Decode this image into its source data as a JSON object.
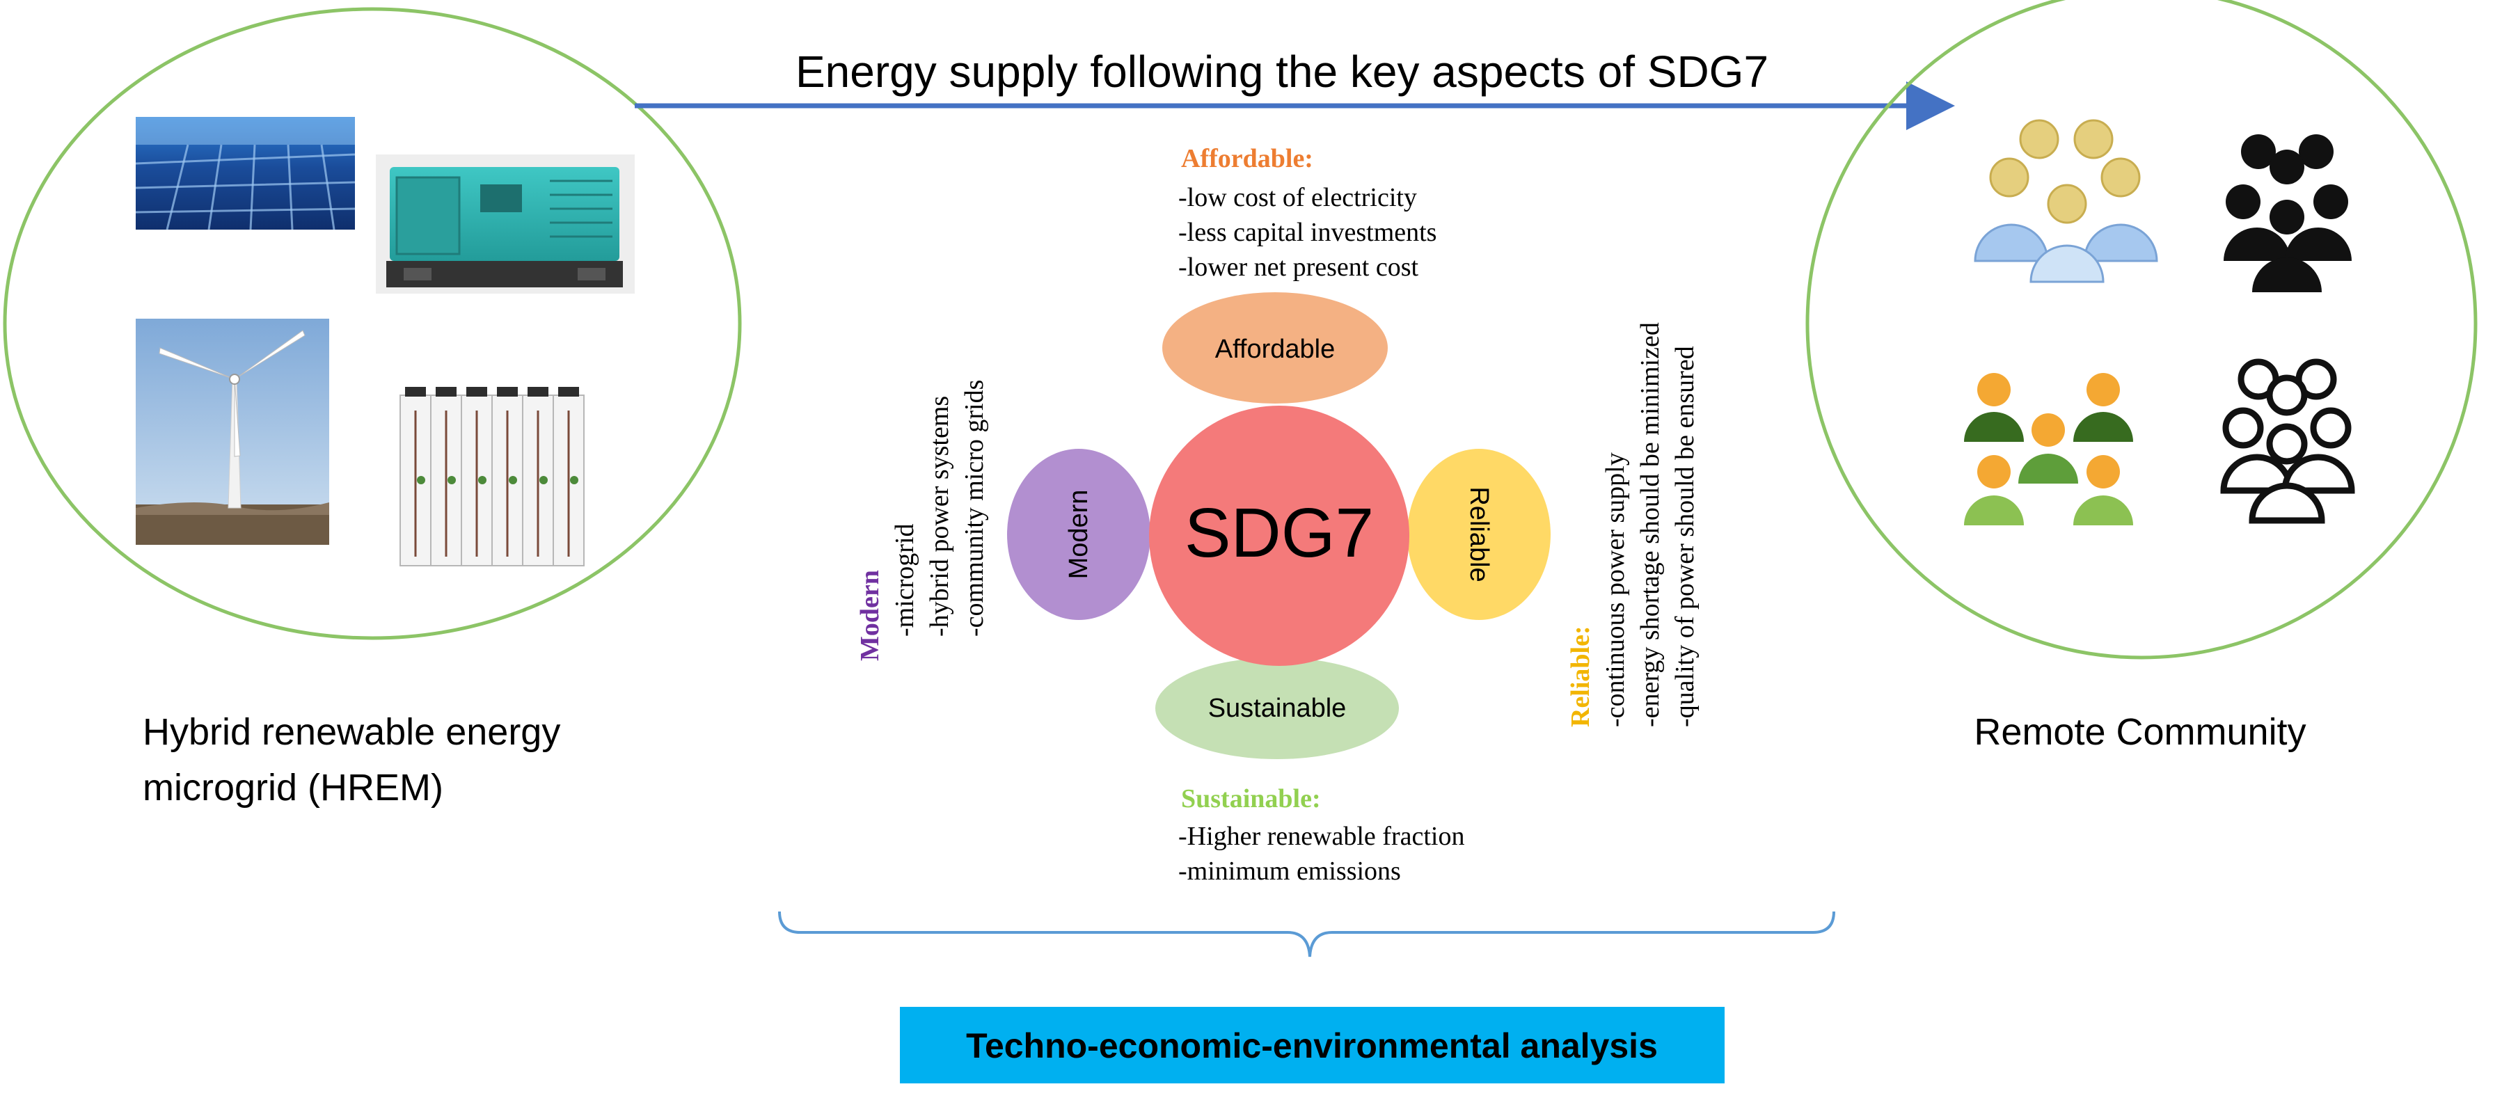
{
  "header": {
    "arrow_label": "Energy supply following the key aspects of SDG7"
  },
  "hrem": {
    "caption_line1": "Hybrid renewable energy",
    "caption_line2": "microgrid (HREM)"
  },
  "community": {
    "caption": "Remote Community"
  },
  "center": {
    "label": "SDG7"
  },
  "petals": {
    "affordable": "Affordable",
    "modern": "Modern",
    "reliable": "Reliable",
    "sustainable": "Sustainable"
  },
  "descriptions": {
    "affordable": {
      "title": "Affordable:",
      "items": [
        "-low cost of electricity",
        "-less capital investments",
        "-lower net present cost"
      ]
    },
    "modern": {
      "title": "Modern",
      "items": [
        "-microgrid",
        "-hybrid power systems",
        "-community micro grids"
      ]
    },
    "reliable": {
      "title": "Reliable:",
      "items": [
        "-continuous power supply",
        "-energy shortage should be minimized",
        "-quality of power should be ensured"
      ]
    },
    "sustainable": {
      "title": "Sustainable:",
      "items": [
        "-Higher renewable fraction",
        "-minimum emissions"
      ]
    }
  },
  "footer": {
    "analysis_label": "Techno-economic-environmental analysis"
  },
  "colors": {
    "circle_outline": "#8cc466",
    "arrow": "#4472c4",
    "center": "#f47a7a",
    "affordable": "#f4b183",
    "affordable_text": "#ed7d31",
    "modern": "#b28fd0",
    "modern_text": "#7030a0",
    "reliable": "#ffd966",
    "reliable_text": "#f2b500",
    "sustainable": "#c5e0b4",
    "sustainable_text": "#92d050",
    "analysis_box": "#00b0f0",
    "brace": "#5b9bd5"
  },
  "icons": {
    "solar": "solar-panel-icon",
    "generator": "diesel-generator-icon",
    "wind": "wind-turbine-icon",
    "battery": "battery-bank-icon",
    "people_colored_a": "people-group-icon",
    "people_black": "people-group-icon",
    "people_colored_b": "people-group-icon",
    "people_outline": "people-group-icon"
  }
}
